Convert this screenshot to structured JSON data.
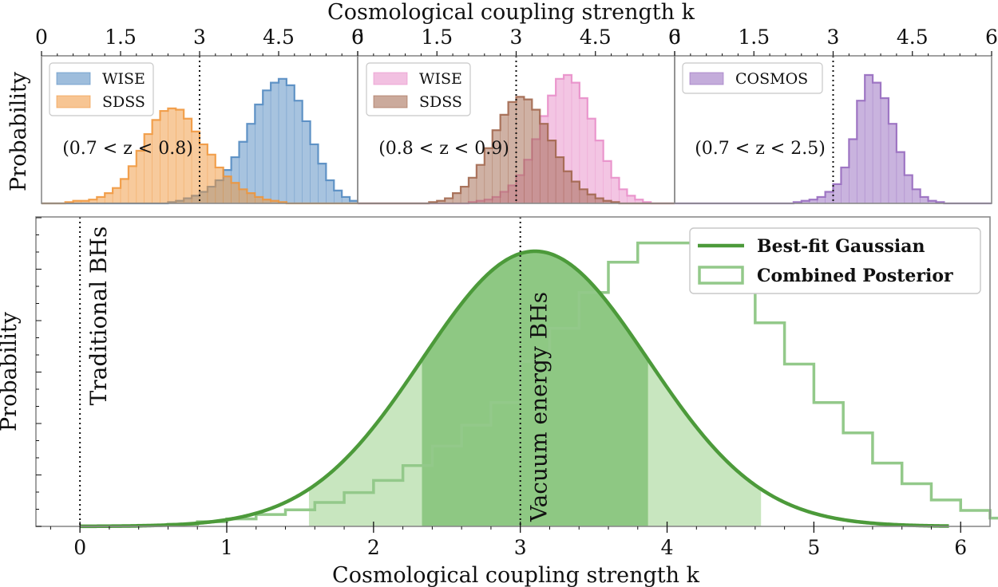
{
  "figure": {
    "top_axis_title": "Cosmological coupling strength k",
    "bottom_axis_title": "Cosmological coupling strength k",
    "top_ylabel": "Probability",
    "bottom_ylabel": "Probability",
    "colors": {
      "wise_blue": "#4f87c0",
      "sdss_orange": "#f0953a",
      "wise_pink": "#e88cc8",
      "sdss_brown": "#a0644a",
      "cosmos_purple": "#9467bd",
      "green_line": "#4c9a3a",
      "green_dark": "#8ec883",
      "green_light": "#c8e6bf",
      "green_step": "#93c98a"
    }
  },
  "chart_data": [
    {
      "type": "histogram",
      "panel": "top-left",
      "xlim": [
        0,
        6
      ],
      "xticks": [
        "0",
        "1.5",
        "3",
        "4.5",
        "6"
      ],
      "ylabel": "Probability",
      "annotation": "(0.7 < z < 0.8)",
      "vline": 3,
      "bin_width": 0.15,
      "bin_start": 0.0,
      "series": [
        {
          "name": "WISE",
          "color": "#4f87c0",
          "values": [
            0,
            0,
            0,
            0,
            0,
            0,
            0,
            0,
            0,
            0,
            0,
            0,
            0,
            0,
            0,
            0,
            0.01,
            0.02,
            0.04,
            0.06,
            0.09,
            0.13,
            0.18,
            0.26,
            0.36,
            0.48,
            0.62,
            0.77,
            0.88,
            0.94,
            0.97,
            0.92,
            0.8,
            0.64,
            0.46,
            0.31,
            0.18,
            0.1,
            0.05,
            0.02
          ]
        },
        {
          "name": "SDSS",
          "color": "#f0953a",
          "values": [
            0,
            0,
            0,
            0.01,
            0.02,
            0.02,
            0.03,
            0.05,
            0.08,
            0.12,
            0.19,
            0.29,
            0.41,
            0.54,
            0.65,
            0.72,
            0.74,
            0.73,
            0.66,
            0.56,
            0.46,
            0.38,
            0.28,
            0.21,
            0.16,
            0.11,
            0.08,
            0.05,
            0.03,
            0.02,
            0.01,
            0,
            0,
            0,
            0,
            0,
            0,
            0,
            0,
            0
          ]
        }
      ]
    },
    {
      "type": "histogram",
      "panel": "top-middle",
      "xlim": [
        0,
        6
      ],
      "xticks": [
        "0",
        "1.5",
        "3",
        "4.5",
        "6"
      ],
      "annotation": "(0.8 < z < 0.9)",
      "vline": 3,
      "bin_width": 0.15,
      "bin_start": 0.0,
      "series": [
        {
          "name": "WISE",
          "color": "#e88cc8",
          "values": [
            0,
            0,
            0,
            0,
            0,
            0,
            0,
            0,
            0,
            0,
            0,
            0,
            0,
            0,
            0.01,
            0.02,
            0.03,
            0.05,
            0.09,
            0.14,
            0.22,
            0.34,
            0.5,
            0.68,
            0.84,
            0.97,
            1.0,
            0.94,
            0.82,
            0.66,
            0.49,
            0.33,
            0.2,
            0.11,
            0.06,
            0.03,
            0.01,
            0,
            0,
            0
          ]
        },
        {
          "name": "SDSS",
          "color": "#a0644a",
          "values": [
            0,
            0,
            0,
            0,
            0,
            0,
            0,
            0,
            0,
            0.01,
            0.02,
            0.04,
            0.08,
            0.13,
            0.2,
            0.3,
            0.43,
            0.57,
            0.69,
            0.79,
            0.83,
            0.81,
            0.73,
            0.62,
            0.49,
            0.36,
            0.25,
            0.17,
            0.11,
            0.07,
            0.04,
            0.02,
            0.01,
            0,
            0,
            0,
            0,
            0,
            0,
            0
          ]
        }
      ]
    },
    {
      "type": "histogram",
      "panel": "top-right",
      "xlim": [
        0,
        6
      ],
      "xticks": [
        "0",
        "1.5",
        "3",
        "4.5",
        "6"
      ],
      "annotation": "(0.7 < z < 2.5)",
      "vline": 3,
      "bin_width": 0.15,
      "bin_start": 0.0,
      "series": [
        {
          "name": "COSMOS",
          "color": "#9467bd",
          "values": [
            0,
            0,
            0,
            0,
            0,
            0,
            0,
            0,
            0,
            0,
            0,
            0,
            0,
            0,
            0,
            0.01,
            0.02,
            0.03,
            0.05,
            0.09,
            0.15,
            0.28,
            0.5,
            0.8,
            1.0,
            0.94,
            0.82,
            0.62,
            0.4,
            0.22,
            0.11,
            0.05,
            0.02,
            0.01,
            0,
            0,
            0,
            0,
            0,
            0
          ]
        }
      ]
    },
    {
      "type": "histogram+line",
      "panel": "bottom",
      "xlim": [
        -0.3,
        6.2
      ],
      "xticks": [
        "0",
        "1",
        "2",
        "3",
        "4",
        "5",
        "6"
      ],
      "xlabel": "Cosmological coupling strength k",
      "ylabel": "Probability",
      "vlines": [
        {
          "x": 0,
          "label": "Traditional BHs"
        },
        {
          "x": 3,
          "label": "Vacuum energy BHs"
        }
      ],
      "gaussian": {
        "name": "Best-fit Gaussian",
        "mean": 3.1,
        "sigma": 0.77
      },
      "posterior": {
        "name": "Combined Posterior",
        "bin_width": 0.2,
        "bin_start": 0.0,
        "values": [
          0.0,
          0.0,
          0.004,
          0.008,
          0.017,
          0.027,
          0.043,
          0.06,
          0.087,
          0.123,
          0.167,
          0.221,
          0.292,
          0.368,
          0.45,
          0.6,
          0.72,
          0.85,
          0.96,
          1.03,
          1.03,
          0.95,
          0.86,
          0.74,
          0.59,
          0.45,
          0.34,
          0.23,
          0.155,
          0.096,
          0.058,
          0.03,
          0.02,
          0.01
        ]
      },
      "shade_1sigma": [
        2.33,
        3.87
      ],
      "shade_2sigma": [
        1.56,
        4.64
      ]
    }
  ]
}
